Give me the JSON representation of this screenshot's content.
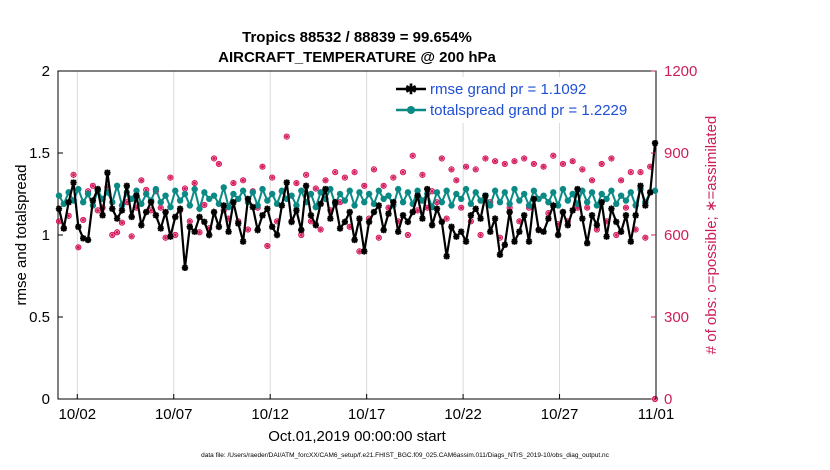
{
  "chart_data": {
    "type": "line",
    "title": "Tropics 88532 / 88839 = 99.654%",
    "subtitle": "AIRCRAFT_TEMPERATURE @ 200 hPa",
    "xlabel": "Oct.01,2019 00:00:00 start",
    "ylabel_left": "rmse and totalspread",
    "ylabel_right": "# of obs: o=possible; ∗=assimilated",
    "ylim_left": [
      0,
      2
    ],
    "ylim_right": [
      0,
      1200
    ],
    "xlim_days": [
      0,
      31
    ],
    "yticks_left": [
      "0",
      "0.5",
      "1",
      "1.5",
      "2"
    ],
    "yticks_right": [
      "0",
      "300",
      "600",
      "900",
      "1200"
    ],
    "xtick_labels": [
      "10/02",
      "10/07",
      "10/12",
      "10/17",
      "10/22",
      "10/27",
      "11/01"
    ],
    "xtick_days": [
      1,
      6,
      11,
      16,
      21,
      26,
      31
    ],
    "colors": {
      "rmse": "#000000",
      "spread": "#0b8a85",
      "obs": "#d4145a",
      "right_axis": "#cc1f5a",
      "legend_text": "#1f4fd6",
      "grid": "#d9d9d9"
    },
    "legend": [
      {
        "name": "rmse grand pr = 1.1092",
        "series": "rmse"
      },
      {
        "name": "totalspread grand pr = 1.2229",
        "series": "spread"
      }
    ],
    "rmse": [
      1.16,
      1.04,
      1.2,
      1.32,
      1.05,
      0.98,
      0.97,
      1.21,
      1.28,
      1.12,
      1.38,
      1.16,
      1.1,
      1.15,
      1.3,
      1.11,
      1.24,
      1.06,
      1.14,
      1.2,
      1.12,
      1.04,
      1.14,
      0.99,
      1.11,
      1.16,
      0.8,
      1.05,
      1.02,
      1.11,
      1.08,
      1.0,
      1.14,
      1.05,
      1.18,
      1.02,
      1.2,
      1.07,
      0.96,
      1.22,
      1.17,
      1.03,
      1.12,
      1.16,
      1.05,
      1.0,
      1.18,
      1.32,
      1.08,
      1.15,
      1.03,
      1.3,
      1.12,
      1.06,
      1.19,
      1.28,
      1.1,
      1.2,
      1.04,
      1.08,
      1.14,
      0.97,
      1.1,
      0.9,
      1.08,
      1.14,
      1.18,
      1.03,
      1.13,
      1.2,
      1.02,
      1.12,
      1.08,
      1.14,
      1.24,
      1.1,
      1.28,
      1.06,
      1.16,
      1.08,
      0.87,
      1.05,
      0.99,
      1.02,
      0.96,
      1.12,
      1.16,
      1.1,
      1.24,
      1.02,
      1.1,
      0.88,
      0.94,
      1.14,
      0.96,
      1.02,
      1.12,
      0.96,
      1.22,
      1.03,
      1.02,
      1.1,
      1.18,
      1.0,
      1.14,
      1.06,
      1.15,
      1.28,
      1.1,
      0.95,
      1.12,
      1.06,
      1.2,
      0.99,
      1.16,
      1.08,
      1.02,
      1.12,
      0.96,
      1.12,
      1.3,
      1.18,
      1.26,
      1.56
    ],
    "spread": [
      1.24,
      1.19,
      1.26,
      1.21,
      1.28,
      1.2,
      1.25,
      1.18,
      1.27,
      1.22,
      1.26,
      1.2,
      1.3,
      1.18,
      1.26,
      1.22,
      1.27,
      1.19,
      1.25,
      1.21,
      1.28,
      1.2,
      1.24,
      1.17,
      1.27,
      1.21,
      1.25,
      1.18,
      1.28,
      1.16,
      1.26,
      1.22,
      1.24,
      1.19,
      1.29,
      1.17,
      1.25,
      1.22,
      1.27,
      1.2,
      1.26,
      1.18,
      1.28,
      1.21,
      1.25,
      1.19,
      1.27,
      1.22,
      1.24,
      1.18,
      1.27,
      1.2,
      1.25,
      1.17,
      1.26,
      1.22,
      1.28,
      1.19,
      1.25,
      1.21,
      1.27,
      1.18,
      1.26,
      1.2,
      1.25,
      1.19,
      1.27,
      1.22,
      1.24,
      1.18,
      1.28,
      1.2,
      1.26,
      1.19,
      1.27,
      1.21,
      1.25,
      1.17,
      1.26,
      1.2,
      1.27,
      1.18,
      1.25,
      1.22,
      1.28,
      1.19,
      1.26,
      1.21,
      1.24,
      1.18,
      1.27,
      1.2,
      1.26,
      1.19,
      1.28,
      1.21,
      1.25,
      1.18,
      1.27,
      1.22,
      1.24,
      1.2,
      1.26,
      1.18,
      1.28,
      1.21,
      1.25,
      1.19,
      1.27,
      1.2,
      1.26,
      1.18,
      1.25,
      1.22,
      1.27,
      1.19,
      1.24,
      1.21,
      1.26,
      1.18,
      1.28,
      1.2,
      1.26,
      1.27
    ],
    "obs": [
      650,
      625,
      670,
      820,
      555,
      655,
      760,
      780,
      690,
      700,
      775,
      600,
      610,
      645,
      720,
      595,
      700,
      800,
      765,
      690,
      760,
      700,
      590,
      810,
      600,
      690,
      770,
      650,
      790,
      610,
      710,
      625,
      880,
      860,
      690,
      660,
      790,
      650,
      800,
      620,
      760,
      700,
      850,
      560,
      810,
      650,
      760,
      960,
      650,
      790,
      600,
      820,
      650,
      770,
      620,
      800,
      690,
      830,
      720,
      810,
      630,
      830,
      540,
      780,
      660,
      840,
      590,
      780,
      700,
      810,
      650,
      830,
      600,
      890,
      690,
      820,
      700,
      760,
      720,
      880,
      660,
      840,
      800,
      700,
      850,
      650,
      840,
      600,
      880,
      720,
      870,
      590,
      860,
      700,
      870,
      650,
      880,
      700,
      860,
      620,
      850,
      680,
      890,
      640,
      860,
      650,
      870,
      700,
      840,
      700,
      800,
      620,
      860,
      650,
      880,
      600,
      800,
      700,
      830,
      620,
      830,
      590,
      850,
      0
    ]
  },
  "footer": {
    "datafile": "data file: /Users/raeder/DAI/ATM_forcXX/CAM6_setup/f.e21.FHIST_BGC.f09_025.CAM6assim.011/Diags_NTrS_2019-10/obs_diag_output.nc"
  }
}
